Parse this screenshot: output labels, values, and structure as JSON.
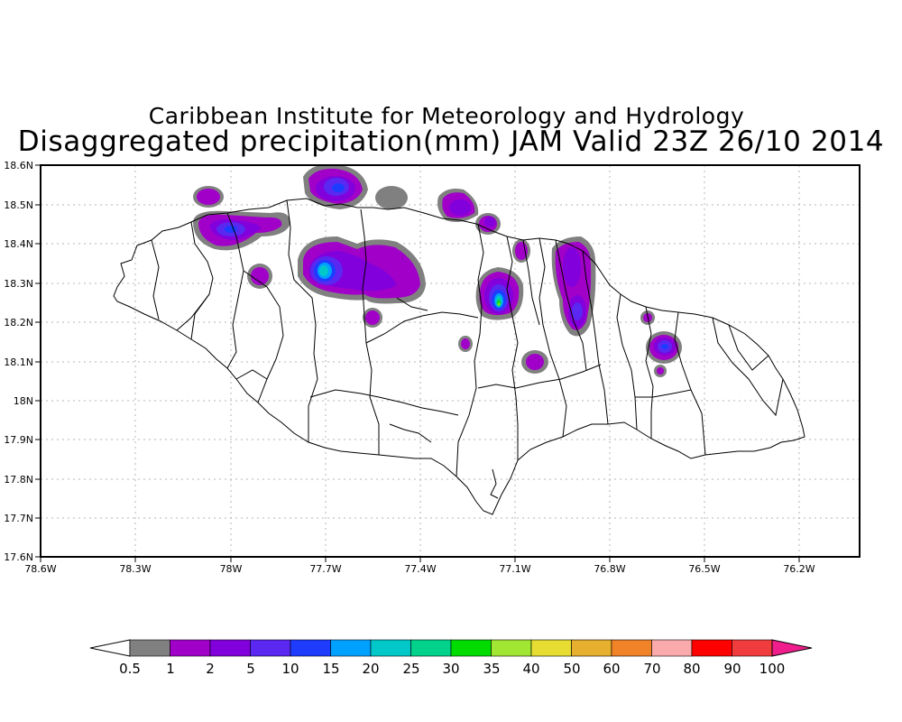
{
  "title": "Caribbean Institute for Meteorology and Hydrology",
  "subtitle": "Disaggregated precipitation(mm) JAM Valid 23Z 26/10 2014",
  "lat_labels": [
    "18.6N",
    "18.5N",
    "18.4N",
    "18.3N",
    "18.2N",
    "18.1N",
    "18N",
    "17.9N",
    "17.8N",
    "17.7N",
    "17.6N"
  ],
  "lon_labels": [
    "78.6W",
    "78.3W",
    "78W",
    "77.7W",
    "77.4W",
    "77.1W",
    "76.8W",
    "76.5W",
    "76.2W"
  ],
  "colorbar": {
    "labels": [
      "0.5",
      "1",
      "2",
      "5",
      "10",
      "15",
      "20",
      "25",
      "30",
      "35",
      "40",
      "50",
      "60",
      "70",
      "80",
      "90",
      "100"
    ],
    "colors": [
      "#808080",
      "#a000c8",
      "#8200dc",
      "#5a28f0",
      "#1e3cff",
      "#00a0ff",
      "#00c8c8",
      "#00d28c",
      "#00dc00",
      "#a0e632",
      "#e6dc32",
      "#e6af2d",
      "#f08228",
      "#faaaaa",
      "#ff0000",
      "#f03c3c",
      "#f01e8c"
    ]
  },
  "chart_data": {
    "type": "heatmap",
    "title": "Caribbean Institute for Meteorology and Hydrology",
    "subtitle": "Disaggregated precipitation(mm) JAM Valid 23Z 26/10 2014",
    "xlim": [
      -78.6,
      -76.1
    ],
    "ylim": [
      17.6,
      18.6
    ],
    "contour_levels": [
      0.5,
      1,
      2,
      5,
      10,
      15,
      20,
      25,
      30,
      35,
      40,
      50,
      60,
      70,
      80,
      90,
      100
    ],
    "grid": true,
    "features": [
      {
        "lon": -77.13,
        "lat": 18.26,
        "max_level": 35
      },
      {
        "lon": -77.66,
        "lat": 18.33,
        "max_level": 20
      },
      {
        "lon": -77.7,
        "lat": 18.55,
        "max_level": 10
      },
      {
        "lon": -77.99,
        "lat": 18.43,
        "max_level": 10
      },
      {
        "lon": -76.9,
        "lat": 18.3,
        "max_level": 5
      },
      {
        "lon": -76.6,
        "lat": 18.14,
        "max_level": 10
      },
      {
        "lon": -77.25,
        "lat": 18.49,
        "max_level": 5
      }
    ]
  }
}
